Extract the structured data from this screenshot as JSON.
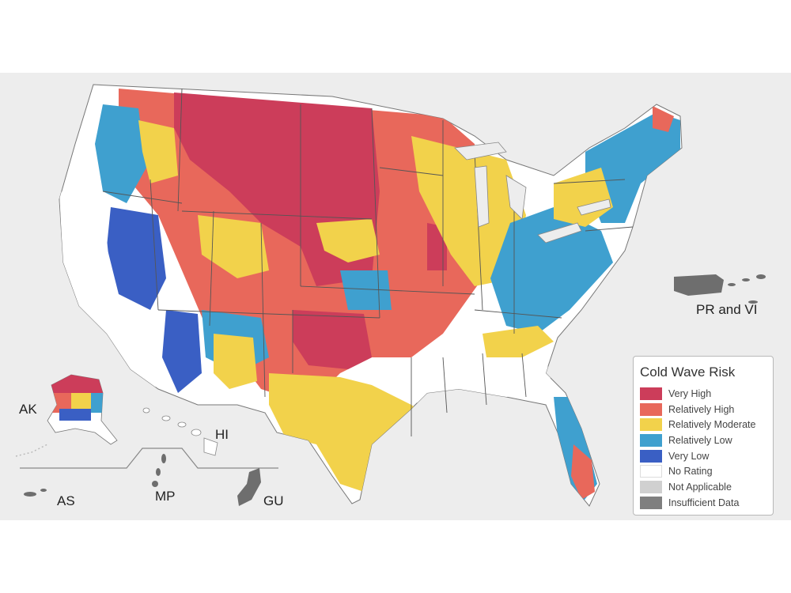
{
  "legend": {
    "title": "Cold Wave Risk",
    "items": [
      {
        "label": "Very High",
        "color": "#cc3d5a"
      },
      {
        "label": "Relatively High",
        "color": "#e8685b"
      },
      {
        "label": "Relatively Moderate",
        "color": "#f2d24b"
      },
      {
        "label": "Relatively Low",
        "color": "#3fa0cf"
      },
      {
        "label": "Very Low",
        "color": "#3a5fc4"
      },
      {
        "label": "No Rating",
        "color": "#ffffff"
      },
      {
        "label": "Not Applicable",
        "color": "#d0d0d0"
      },
      {
        "label": "Insufficient Data",
        "color": "#7f7f7f"
      }
    ]
  },
  "territories": {
    "ak": "AK",
    "hi": "HI",
    "as": "AS",
    "mp": "MP",
    "gu": "GU",
    "pr_vi": "PR and VI"
  },
  "colors": {
    "background": "#ededed",
    "border": "#555555",
    "territory_gray": "#6e6e6e"
  }
}
